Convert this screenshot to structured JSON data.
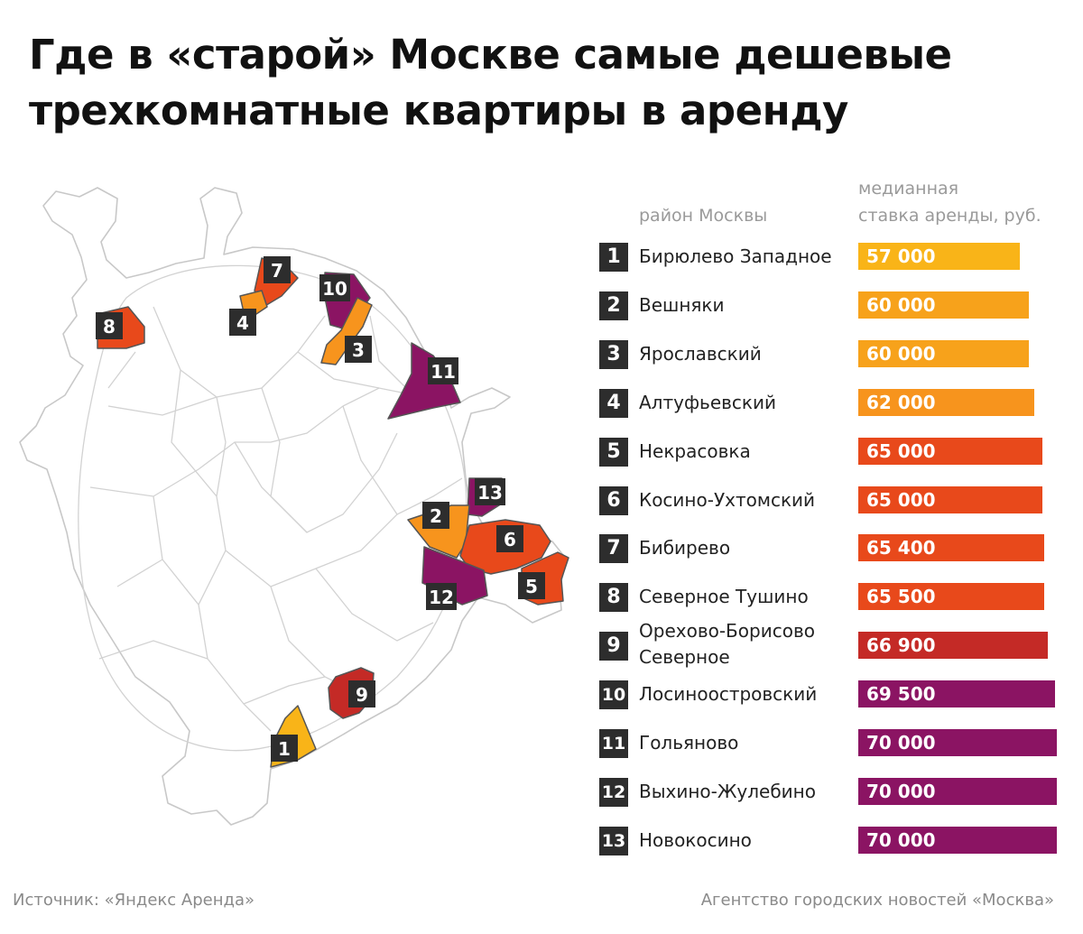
{
  "title_lines": [
    "Где в «старой» Москве самые дешевые",
    "трехкомнатные квартиры в аренду"
  ],
  "header": {
    "district": "район Москвы",
    "rate_line1": "медианная",
    "rate_line2": "ставка аренды, руб."
  },
  "colors": {
    "yellow": "#f9b418",
    "orange": "#f7941d",
    "red_orange": "#e8491b",
    "red": "#c42a26",
    "purple": "#8b1463",
    "label_box": "#2d2d2d"
  },
  "chart_data": {
    "type": "bar",
    "orientation": "horizontal",
    "ylabel": "район Москвы",
    "xlabel": "медианная ставка аренды, руб.",
    "categories": [
      {
        "rank": "1",
        "name": "Бирюлево Западное",
        "value": 57000,
        "label": "57 000",
        "color": "#f9b418"
      },
      {
        "rank": "2",
        "name": "Вешняки",
        "value": 60000,
        "label": "60 000",
        "color": "#f7a21b"
      },
      {
        "rank": "3",
        "name": "Ярославский",
        "value": 60000,
        "label": "60 000",
        "color": "#f7a21b"
      },
      {
        "rank": "4",
        "name": "Алтуфьевский",
        "value": 62000,
        "label": "62 000",
        "color": "#f7941d"
      },
      {
        "rank": "5",
        "name": "Некрасовка",
        "value": 65000,
        "label": "65 000",
        "color": "#e8491b"
      },
      {
        "rank": "6",
        "name": "Косино-Ухтомский",
        "value": 65000,
        "label": "65 000",
        "color": "#e8491b"
      },
      {
        "rank": "7",
        "name": "Бибирево",
        "value": 65400,
        "label": "65 400",
        "color": "#e8491b"
      },
      {
        "rank": "8",
        "name": "Северное Тушино",
        "value": 65500,
        "label": "65 500",
        "color": "#e8491b"
      },
      {
        "rank": "9",
        "name": "Орехово-Борисово Северное",
        "name_lines": [
          "Орехово-Борисово",
          "Северное"
        ],
        "value": 66900,
        "label": "66 900",
        "color": "#c42a26"
      },
      {
        "rank": "10",
        "name": "Лосиноостровский",
        "value": 69500,
        "label": "69 500",
        "color": "#8b1463"
      },
      {
        "rank": "11",
        "name": "Гольяново",
        "value": 70000,
        "label": "70 000",
        "color": "#8b1463"
      },
      {
        "rank": "12",
        "name": "Выхино-Жулебино",
        "value": 70000,
        "label": "70 000",
        "color": "#8b1463"
      },
      {
        "rank": "13",
        "name": "Новокосино",
        "value": 70000,
        "label": "70 000",
        "color": "#8b1463"
      }
    ]
  },
  "map_labels": [
    "1",
    "2",
    "3",
    "4",
    "5",
    "6",
    "7",
    "8",
    "9",
    "10",
    "11",
    "12",
    "13"
  ],
  "footer": {
    "source": "Источник: «Яндекс Аренда»",
    "agency": "Агентство городских новостей «Москва»"
  }
}
